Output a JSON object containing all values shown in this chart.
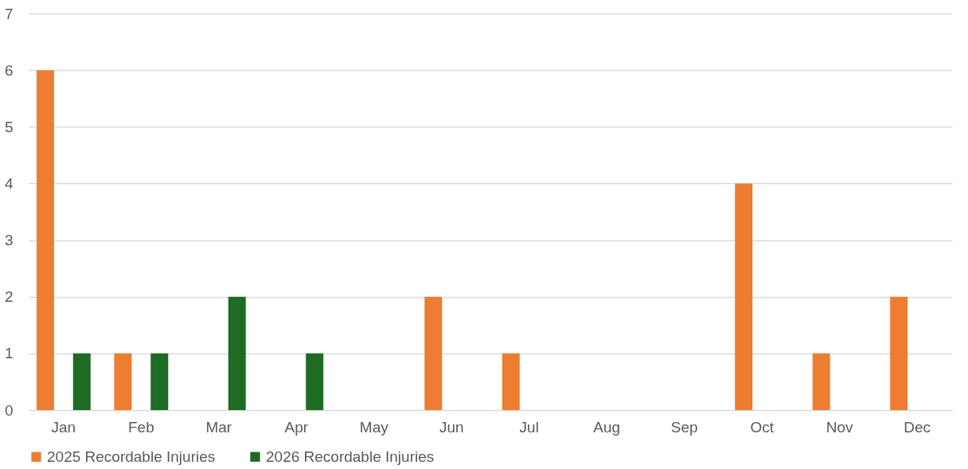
{
  "chart_data": {
    "type": "bar",
    "categories": [
      "Jan",
      "Feb",
      "Mar",
      "Apr",
      "May",
      "Jun",
      "Jul",
      "Aug",
      "Sep",
      "Oct",
      "Nov",
      "Dec"
    ],
    "series": [
      {
        "name": "2025 Recordable Injuries",
        "color": "#ed7d31",
        "values": [
          6,
          1,
          0,
          0,
          0,
          2,
          1,
          0,
          0,
          4,
          1,
          2
        ]
      },
      {
        "name": "2026 Recordable Injuries",
        "color": "#1e6b24",
        "values": [
          1,
          1,
          2,
          1,
          0,
          0,
          0,
          0,
          0,
          0,
          0,
          0
        ]
      }
    ],
    "ylim": [
      0,
      7
    ],
    "yticks": [
      0,
      1,
      2,
      3,
      4,
      5,
      6,
      7
    ],
    "grid": "y",
    "legend": "bottom"
  }
}
